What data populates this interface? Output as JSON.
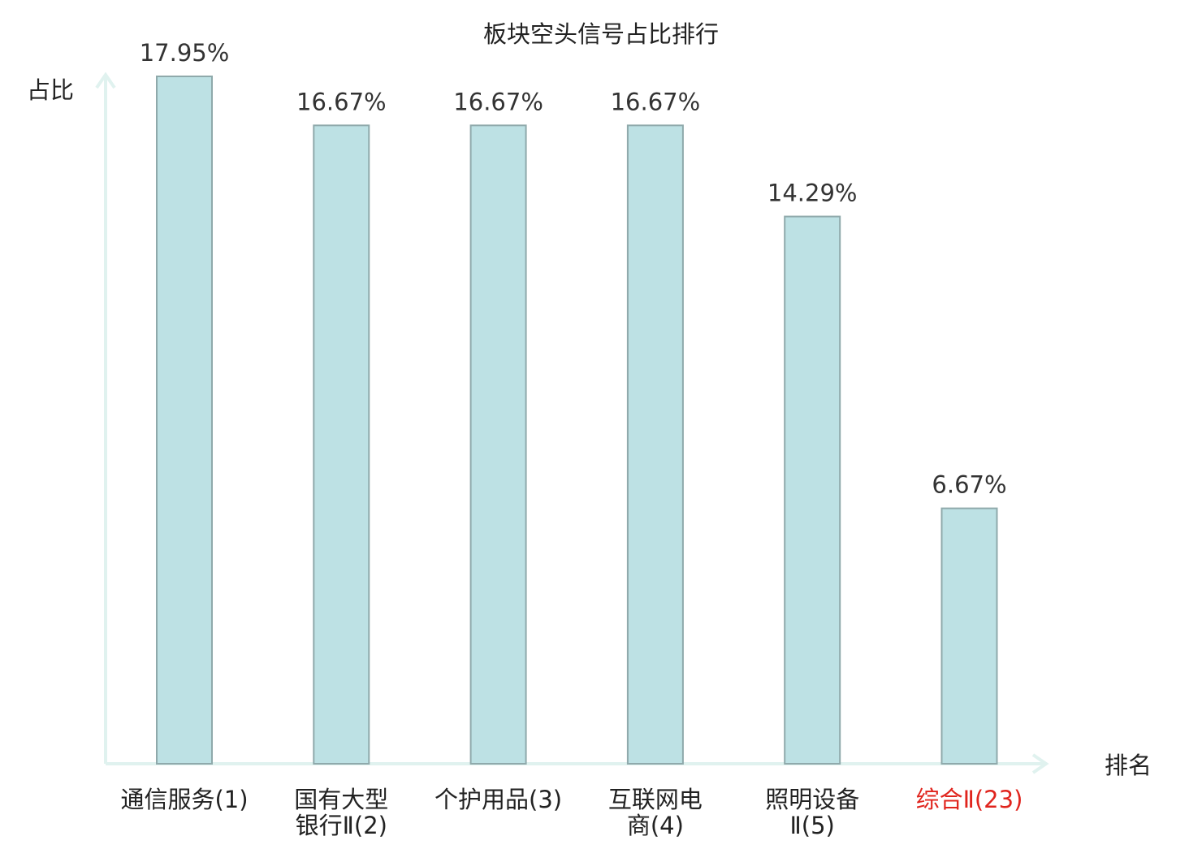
{
  "chart_data": {
    "type": "bar",
    "title": "板块空头信号占比排行",
    "ylabel": "占比",
    "xlabel": "排名",
    "ylim": [
      0,
      17.95
    ],
    "grid": false,
    "categories": [
      [
        "通信服务(1)"
      ],
      [
        "国有大型",
        "银行Ⅱ(2)"
      ],
      [
        "个护用品(3)"
      ],
      [
        "互联网电",
        "商(4)"
      ],
      [
        "照明设备",
        "Ⅱ(5)"
      ],
      [
        "综合Ⅱ(23)"
      ]
    ],
    "values": [
      17.95,
      16.67,
      16.67,
      16.67,
      14.29,
      6.67
    ],
    "value_labels": [
      "17.95%",
      "16.67%",
      "16.67%",
      "16.67%",
      "14.29%",
      "6.67%"
    ],
    "highlight_index": 5
  },
  "colors": {
    "bar_fill": "#bde1e4",
    "bar_stroke": "#8fa9ab",
    "axis": "#e0f2ef",
    "highlight_text": "#e0241d",
    "text": "#222222"
  }
}
